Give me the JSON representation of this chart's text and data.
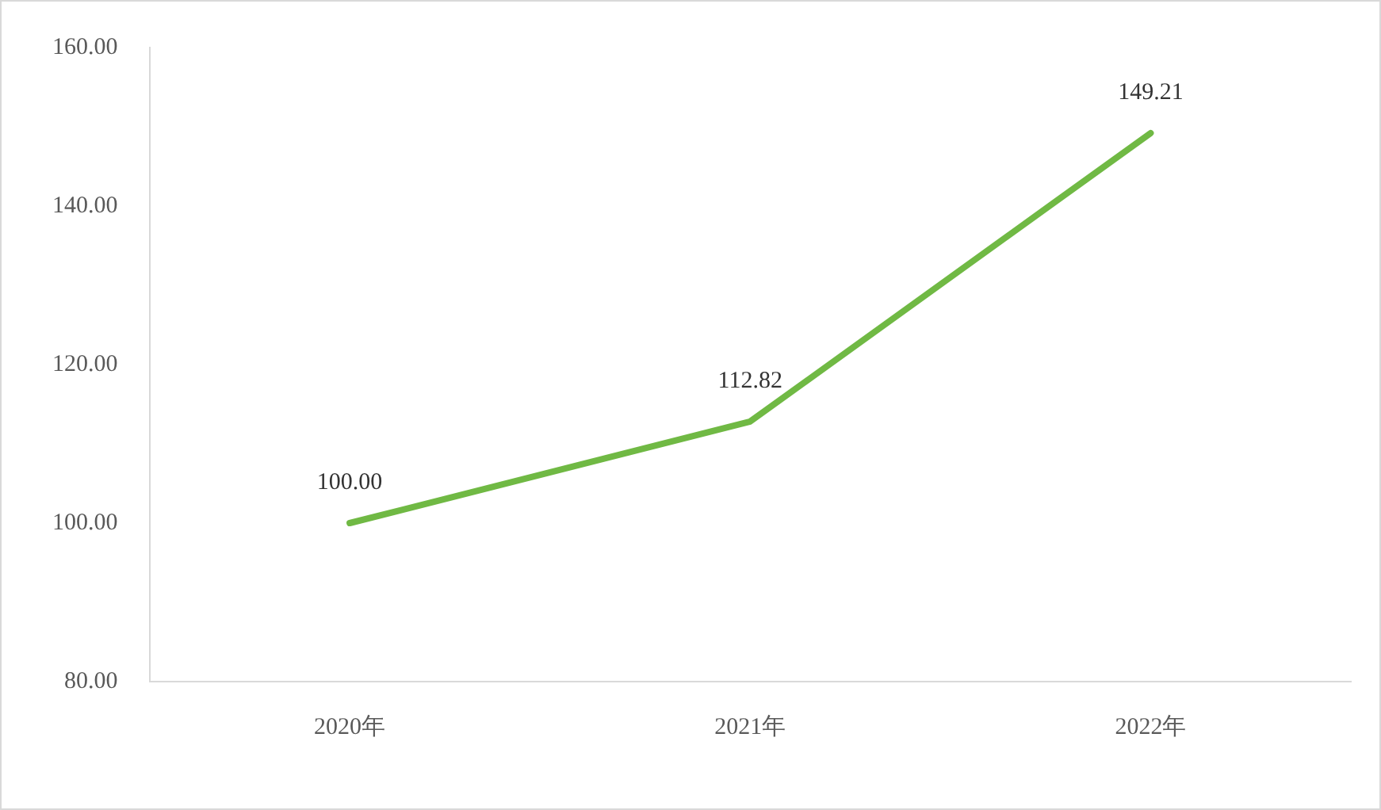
{
  "chart_data": {
    "type": "line",
    "categories": [
      "2020年",
      "2021年",
      "2022年"
    ],
    "series": [
      {
        "color": "#70b944",
        "values": [
          100.0,
          112.82,
          149.21
        ],
        "value_labels": [
          "100.00",
          "112.82",
          "149.21"
        ]
      }
    ],
    "ylim": [
      80,
      160
    ],
    "yticks": [
      {
        "value": 80,
        "label": "80.00"
      },
      {
        "value": 100,
        "label": "100.00"
      },
      {
        "value": 120,
        "label": "120.00"
      },
      {
        "value": 140,
        "label": "140.00"
      },
      {
        "value": 160,
        "label": "160.00"
      }
    ],
    "grid": false,
    "legend": false,
    "marker": "none",
    "line_style": "solid"
  }
}
